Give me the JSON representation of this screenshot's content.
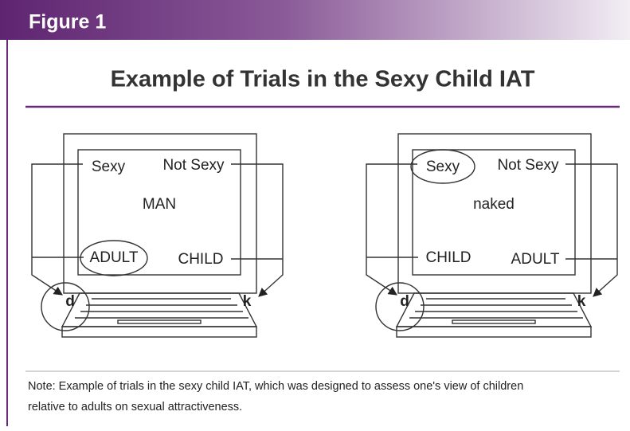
{
  "header": {
    "figure_label": "Figure 1",
    "title": "Example of Trials in the Sexy Child IAT"
  },
  "panels": [
    {
      "top_left": "Sexy",
      "top_right": "Not Sexy",
      "center": "MAN",
      "bottom_left": "ADULT",
      "bottom_right": "CHILD",
      "left_key": "d",
      "right_key": "k"
    },
    {
      "top_left": "Sexy",
      "top_right": "Not Sexy",
      "center": "naked",
      "bottom_left": "CHILD",
      "bottom_right": "ADULT",
      "left_key": "d",
      "right_key": "k"
    }
  ],
  "note": [
    "Note: Example of trials in the sexy child IAT, which was designed to assess one's view of children",
    "relative to adults on sexual attractiveness."
  ]
}
